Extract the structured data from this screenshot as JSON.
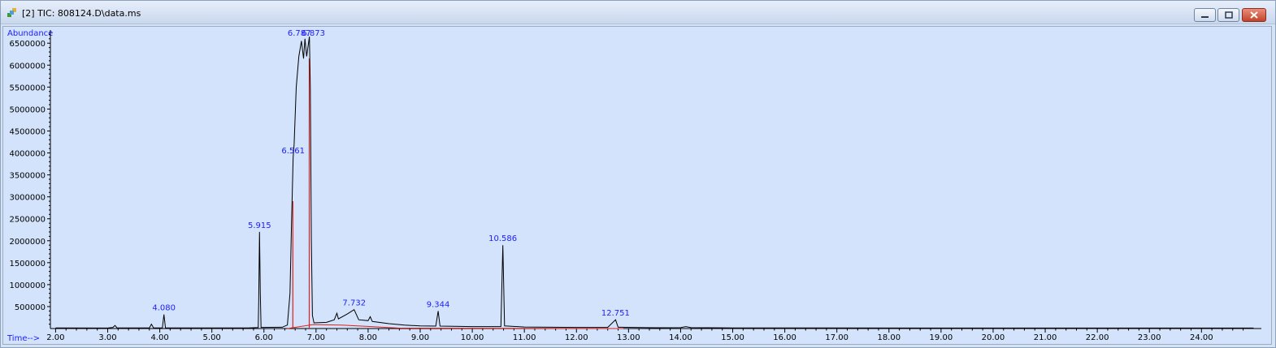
{
  "window": {
    "title": "[2] TIC: 808124.D\\data.ms",
    "buttons": [
      "minimize",
      "restore",
      "close"
    ]
  },
  "colors": {
    "background": "#d2e3fb",
    "trace": "#000000",
    "peak_labels": "#2020ff",
    "integration": "#e0201c"
  },
  "chart_data": {
    "type": "line",
    "title": "",
    "ylabel": "Abundance",
    "xlabel": "Time-->",
    "xlim": [
      1.9,
      25.15
    ],
    "ylim": [
      0,
      6800000
    ],
    "x_ticks": [
      "2.00",
      "3.00",
      "4.00",
      "5.00",
      "6.00",
      "7.00",
      "8.00",
      "9.00",
      "10.00",
      "11.00",
      "12.00",
      "13.00",
      "14.00",
      "15.00",
      "16.00",
      "17.00",
      "18.00",
      "19.00",
      "20.00",
      "21.00",
      "22.00",
      "23.00",
      "24.00"
    ],
    "y_ticks": [
      "500000",
      "1000000",
      "1500000",
      "2000000",
      "2500000",
      "3000000",
      "3500000",
      "4000000",
      "4500000",
      "5000000",
      "5500000",
      "6000000",
      "6500000"
    ],
    "series": [
      {
        "values": [
          [
            2.0,
            15000
          ],
          [
            3.0,
            12000
          ],
          [
            3.1,
            25000
          ],
          [
            3.14,
            70000
          ],
          [
            3.18,
            14000
          ],
          [
            3.8,
            14000
          ],
          [
            3.84,
            100000
          ],
          [
            3.88,
            16000
          ],
          [
            4.05,
            14000
          ],
          [
            4.08,
            320000
          ],
          [
            4.11,
            15000
          ],
          [
            4.6,
            13000
          ],
          [
            5.0,
            14000
          ],
          [
            5.7,
            15000
          ],
          [
            5.89,
            22000
          ],
          [
            5.9,
            600000
          ],
          [
            5.915,
            2200000
          ],
          [
            5.93,
            800000
          ],
          [
            5.945,
            25000
          ],
          [
            6.35,
            30000
          ],
          [
            6.45,
            80000
          ],
          [
            6.5,
            800000
          ],
          [
            6.53,
            2400000
          ],
          [
            6.561,
            3900000
          ],
          [
            6.58,
            4200000
          ],
          [
            6.62,
            5500000
          ],
          [
            6.67,
            6200000
          ],
          [
            6.72,
            6550000
          ],
          [
            6.76,
            6150000
          ],
          [
            6.787,
            6600000
          ],
          [
            6.82,
            6200000
          ],
          [
            6.85,
            6450000
          ],
          [
            6.873,
            6650000
          ],
          [
            6.89,
            5500000
          ],
          [
            6.91,
            2000000
          ],
          [
            6.93,
            300000
          ],
          [
            6.96,
            130000
          ],
          [
            7.2,
            140000
          ],
          [
            7.35,
            200000
          ],
          [
            7.4,
            350000
          ],
          [
            7.43,
            220000
          ],
          [
            7.6,
            330000
          ],
          [
            7.732,
            430000
          ],
          [
            7.82,
            200000
          ],
          [
            8.0,
            180000
          ],
          [
            8.04,
            270000
          ],
          [
            8.08,
            160000
          ],
          [
            8.4,
            110000
          ],
          [
            8.7,
            80000
          ],
          [
            9.0,
            60000
          ],
          [
            9.3,
            55000
          ],
          [
            9.344,
            400000
          ],
          [
            9.38,
            55000
          ],
          [
            10.0,
            45000
          ],
          [
            10.55,
            45000
          ],
          [
            10.586,
            1900000
          ],
          [
            10.62,
            60000
          ],
          [
            11.0,
            35000
          ],
          [
            12.0,
            25000
          ],
          [
            12.6,
            25000
          ],
          [
            12.751,
            200000
          ],
          [
            12.8,
            30000
          ],
          [
            13.5,
            18000
          ],
          [
            14.0,
            20000
          ],
          [
            14.1,
            45000
          ],
          [
            14.2,
            20000
          ],
          [
            15.0,
            15000
          ],
          [
            20.0,
            12000
          ],
          [
            25.0,
            12000
          ]
        ]
      }
    ],
    "peak_labels": [
      {
        "time": 4.08,
        "label": "4.080",
        "y": 320000
      },
      {
        "time": 5.915,
        "label": "5.915",
        "y": 2200000
      },
      {
        "time": 6.561,
        "label": "6.561",
        "y": 3900000
      },
      {
        "time": 6.787,
        "label": "6.787",
        "y": 6600000
      },
      {
        "time": 6.873,
        "label": "6.873",
        "y": 6650000
      },
      {
        "time": 7.732,
        "label": "7.732",
        "y": 430000
      },
      {
        "time": 9.344,
        "label": "9.344",
        "y": 400000
      },
      {
        "time": 10.586,
        "label": "10.586",
        "y": 1900000
      },
      {
        "time": 12.751,
        "label": "12.751",
        "y": 200000
      }
    ],
    "integration_lines": [
      {
        "x": 6.555,
        "y0": 0,
        "y1": 2900000
      },
      {
        "x": 6.87,
        "y0": 0,
        "y1": 6150000
      }
    ],
    "baseline": [
      [
        6.45,
        0
      ],
      [
        6.95,
        90000
      ],
      [
        7.5,
        80000
      ],
      [
        8.1,
        40000
      ],
      [
        8.6,
        10000
      ],
      [
        12.7,
        0
      ],
      [
        12.9,
        0
      ]
    ]
  }
}
